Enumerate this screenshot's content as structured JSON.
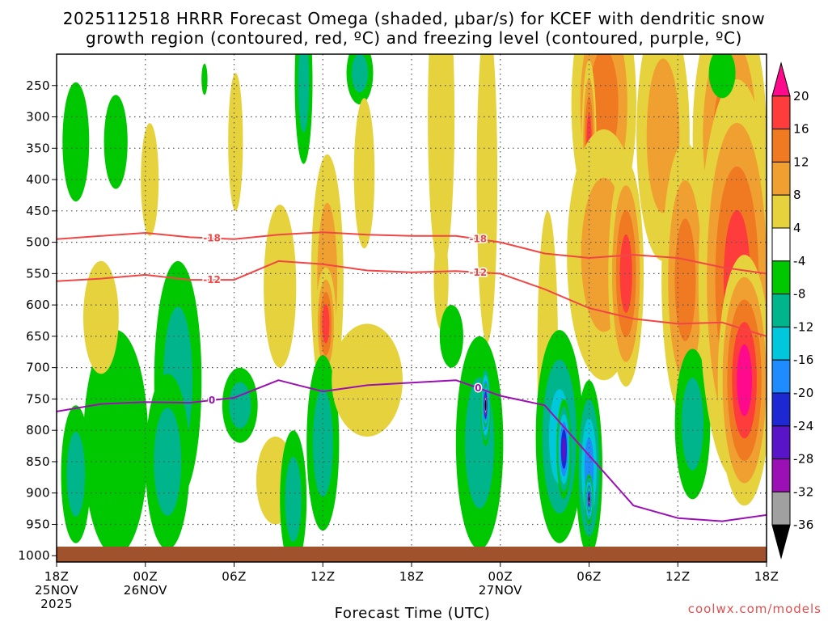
{
  "chart_data": {
    "type": "heatmap",
    "title_line1": "2025112518 HRRR Forecast Omega (shaded, μbar/s) for KCEF with dendritic snow",
    "title_line2": "growth region (contoured, red, ºC) and freezing level (contoured, purple, ºC)",
    "xlabel": "Forecast Time (UTC)",
    "credit": "coolwx.com/models",
    "x_ticks": [
      {
        "hour": 0,
        "line1": "18Z",
        "line2": "25NOV",
        "line3": "2025"
      },
      {
        "hour": 6,
        "line1": "00Z",
        "line2": "26NOV",
        "line3": ""
      },
      {
        "hour": 12,
        "line1": "06Z",
        "line2": "",
        "line3": ""
      },
      {
        "hour": 18,
        "line1": "12Z",
        "line2": "",
        "line3": ""
      },
      {
        "hour": 24,
        "line1": "18Z",
        "line2": "",
        "line3": ""
      },
      {
        "hour": 30,
        "line1": "00Z",
        "line2": "27NOV",
        "line3": ""
      },
      {
        "hour": 36,
        "line1": "06Z",
        "line2": "",
        "line3": ""
      },
      {
        "hour": 42,
        "line1": "12Z",
        "line2": "",
        "line3": ""
      },
      {
        "hour": 48,
        "line1": "18Z",
        "line2": "",
        "line3": ""
      }
    ],
    "x_range_hours": [
      0,
      48
    ],
    "y_ticks": [
      250,
      300,
      350,
      400,
      450,
      500,
      550,
      600,
      650,
      700,
      750,
      800,
      850,
      900,
      950,
      1000
    ],
    "y_range_hpa": [
      200,
      1010
    ],
    "colorbar": {
      "labels": [
        "20",
        "16",
        "12",
        "8",
        "4",
        "-4",
        "-8",
        "-12",
        "-16",
        "-20",
        "-24",
        "-28",
        "-32",
        "-36"
      ],
      "colors": [
        "#ff0a8c",
        "#ff3c3c",
        "#f07a22",
        "#f0a030",
        "#e6d23c",
        "#ffffff",
        "#00c800",
        "#00b48c",
        "#00c8dc",
        "#1e8cff",
        "#1e28d2",
        "#5a14c8",
        "#9b10b4",
        "#a0a0a0",
        "#000000"
      ]
    },
    "contours": [
      {
        "name": "dendritic-snow-top",
        "label": "-18",
        "color": "#f04646",
        "hours": [
          0,
          3,
          6,
          9,
          12,
          15,
          18,
          21,
          24,
          27,
          30,
          33,
          36,
          39,
          42,
          45,
          48
        ],
        "pressure": [
          495,
          490,
          485,
          492,
          495,
          488,
          484,
          488,
          490,
          490,
          500,
          518,
          525,
          520,
          525,
          540,
          550
        ]
      },
      {
        "name": "dendritic-snow-bottom",
        "label": "-12",
        "color": "#f04646",
        "hours": [
          0,
          3,
          6,
          9,
          12,
          15,
          18,
          21,
          24,
          27,
          30,
          33,
          36,
          39,
          42,
          45,
          48
        ],
        "pressure": [
          562,
          558,
          552,
          560,
          560,
          530,
          535,
          545,
          548,
          546,
          550,
          575,
          605,
          622,
          630,
          628,
          650
        ]
      },
      {
        "name": "freezing-level",
        "label": "0",
        "color": "#9b10b4",
        "hours": [
          0,
          3,
          6,
          9,
          12,
          15,
          18,
          21,
          24,
          27,
          30,
          33,
          36,
          39,
          42,
          45,
          48
        ],
        "pressure": [
          770,
          758,
          755,
          756,
          748,
          720,
          738,
          728,
          724,
          720,
          745,
          760,
          840,
          920,
          940,
          945,
          935
        ]
      }
    ],
    "omega_cells": [
      {
        "hour": 1.3,
        "p": 340,
        "dh": 0.9,
        "dp": 95,
        "v": -6
      },
      {
        "hour": 4.0,
        "p": 340,
        "dh": 0.8,
        "dp": 75,
        "v": -6
      },
      {
        "hour": 6.3,
        "p": 400,
        "dh": 0.6,
        "dp": 90,
        "v": 5
      },
      {
        "hour": 8.2,
        "p": 720,
        "dh": 1.6,
        "dp": 190,
        "v": -10
      },
      {
        "hour": 4.0,
        "p": 820,
        "dh": 2.2,
        "dp": 180,
        "v": -7
      },
      {
        "hour": 7.5,
        "p": 850,
        "dh": 1.5,
        "dp": 140,
        "v": -8
      },
      {
        "hour": 1.3,
        "p": 870,
        "dh": 1.0,
        "dp": 110,
        "v": -10
      },
      {
        "hour": 3.0,
        "p": 620,
        "dh": 1.2,
        "dp": 90,
        "v": 6
      },
      {
        "hour": 10.0,
        "p": 240,
        "dh": 0.2,
        "dp": 25,
        "v": -6
      },
      {
        "hour": 12.1,
        "p": 340,
        "dh": 0.5,
        "dp": 110,
        "v": 6
      },
      {
        "hour": 12.4,
        "p": 760,
        "dh": 1.2,
        "dp": 60,
        "v": -9
      },
      {
        "hour": 14.8,
        "p": 880,
        "dh": 1.3,
        "dp": 70,
        "v": 6
      },
      {
        "hour": 15.1,
        "p": 570,
        "dh": 1.1,
        "dp": 130,
        "v": 6
      },
      {
        "hour": 16.7,
        "p": 245,
        "dh": 0.6,
        "dp": 130,
        "v": -8
      },
      {
        "hour": 16.0,
        "p": 910,
        "dh": 0.9,
        "dp": 110,
        "v": -8
      },
      {
        "hour": 18.3,
        "p": 560,
        "dh": 1.1,
        "dp": 200,
        "v": 10
      },
      {
        "hour": 18.2,
        "p": 630,
        "dh": 0.7,
        "dp": 90,
        "v": 16
      },
      {
        "hour": 18.0,
        "p": 820,
        "dh": 1.1,
        "dp": 140,
        "v": -8
      },
      {
        "hour": 20.5,
        "p": 230,
        "dh": 0.9,
        "dp": 50,
        "v": -8
      },
      {
        "hour": 21.0,
        "p": 720,
        "dh": 2.4,
        "dp": 90,
        "v": 5
      },
      {
        "hour": 20.8,
        "p": 390,
        "dh": 0.7,
        "dp": 120,
        "v": 5
      },
      {
        "hour": 26.0,
        "p": 300,
        "dh": 0.9,
        "dp": 250,
        "v": 7
      },
      {
        "hour": 26.0,
        "p": 560,
        "dh": 0.5,
        "dp": 80,
        "v": 5
      },
      {
        "hour": 26.7,
        "p": 650,
        "dh": 0.8,
        "dp": 50,
        "v": -6
      },
      {
        "hour": 29.1,
        "p": 400,
        "dh": 0.7,
        "dp": 260,
        "v": 6
      },
      {
        "hour": 28.6,
        "p": 820,
        "dh": 1.6,
        "dp": 170,
        "v": -10
      },
      {
        "hour": 29.0,
        "p": 760,
        "dh": 0.35,
        "dp": 65,
        "v": -30
      },
      {
        "hour": 29.0,
        "p": 760,
        "dh": 0.18,
        "dp": 35,
        "v": -40
      },
      {
        "hour": 33.2,
        "p": 680,
        "dh": 0.7,
        "dp": 230,
        "v": 6
      },
      {
        "hour": 34.0,
        "p": 810,
        "dh": 1.6,
        "dp": 170,
        "v": -12
      },
      {
        "hour": 34.3,
        "p": 830,
        "dh": 0.5,
        "dp": 80,
        "v": -26
      },
      {
        "hour": 36.0,
        "p": 860,
        "dh": 0.9,
        "dp": 140,
        "v": -18
      },
      {
        "hour": 36.0,
        "p": 910,
        "dh": 0.3,
        "dp": 40,
        "v": -30
      },
      {
        "hour": 36.0,
        "p": 910,
        "dh": 0.15,
        "dp": 20,
        "v": -40
      },
      {
        "hour": 37.0,
        "p": 280,
        "dh": 2.2,
        "dp": 200,
        "v": 12
      },
      {
        "hour": 36.0,
        "p": 340,
        "dh": 0.5,
        "dp": 130,
        "v": 17
      },
      {
        "hour": 37.0,
        "p": 520,
        "dh": 2.5,
        "dp": 200,
        "v": 10
      },
      {
        "hour": 38.5,
        "p": 550,
        "dh": 1.2,
        "dp": 180,
        "v": 16
      },
      {
        "hour": 41.0,
        "p": 330,
        "dh": 1.8,
        "dp": 200,
        "v": 8
      },
      {
        "hour": 42.5,
        "p": 560,
        "dh": 1.6,
        "dp": 220,
        "v": 15
      },
      {
        "hour": 43.0,
        "p": 790,
        "dh": 1.2,
        "dp": 120,
        "v": -8
      },
      {
        "hour": 45.5,
        "p": 330,
        "dh": 2.5,
        "dp": 220,
        "v": 12
      },
      {
        "hour": 46.0,
        "p": 560,
        "dh": 2.6,
        "dp": 320,
        "v": 18
      },
      {
        "hour": 46.5,
        "p": 720,
        "dh": 1.8,
        "dp": 200,
        "v": 22
      },
      {
        "hour": 45.0,
        "p": 230,
        "dh": 0.9,
        "dp": 40,
        "v": -6
      }
    ]
  }
}
